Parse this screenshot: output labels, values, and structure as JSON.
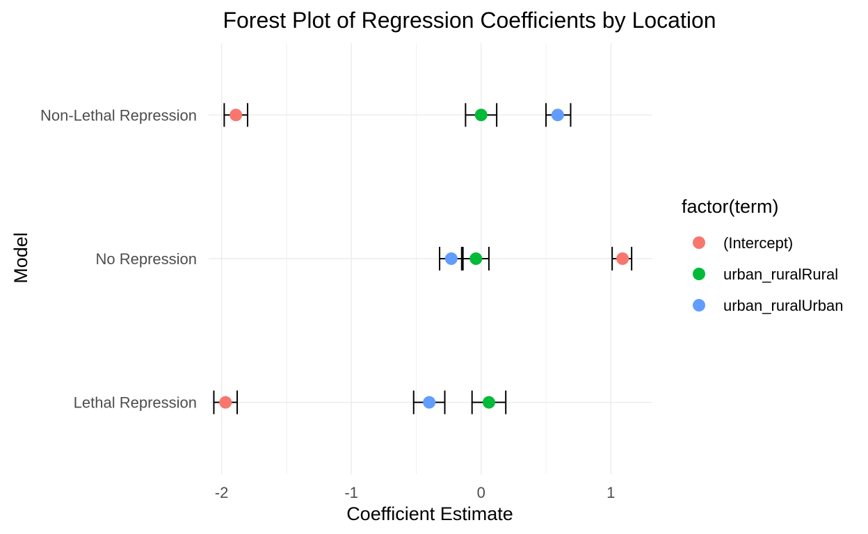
{
  "chart_data": {
    "type": "scatter",
    "title": "Forest Plot of Regression Coefficients by Location",
    "xlabel": "Coefficient Estimate",
    "ylabel": "Model",
    "xlim": [
      -2.1,
      1.32
    ],
    "x_ticks": [
      -2,
      -1,
      0,
      1
    ],
    "x_tick_labels": [
      "-2",
      "-1",
      "0",
      "1"
    ],
    "x_minor_ticks": [
      -1.5,
      -0.5,
      0.5
    ],
    "categories": [
      "Lethal Repression",
      "No Repression",
      "Non-Lethal Repression"
    ],
    "grid": true,
    "legend": {
      "title": "factor(term)",
      "position": "right"
    },
    "series": [
      {
        "name": "(Intercept)",
        "color": "#F8766D",
        "points": [
          {
            "category": "Lethal Repression",
            "estimate": -1.97,
            "lower": -2.06,
            "upper": -1.88
          },
          {
            "category": "No Repression",
            "estimate": 1.09,
            "lower": 1.01,
            "upper": 1.16
          },
          {
            "category": "Non-Lethal Repression",
            "estimate": -1.89,
            "lower": -1.98,
            "upper": -1.8
          }
        ]
      },
      {
        "name": "urban_ruralRural",
        "color": "#00BA38",
        "points": [
          {
            "category": "Lethal Repression",
            "estimate": 0.06,
            "lower": -0.07,
            "upper": 0.19
          },
          {
            "category": "No Repression",
            "estimate": -0.04,
            "lower": -0.14,
            "upper": 0.06
          },
          {
            "category": "Non-Lethal Repression",
            "estimate": 0.0,
            "lower": -0.12,
            "upper": 0.12
          }
        ]
      },
      {
        "name": "urban_ruralUrban",
        "color": "#619CFF",
        "points": [
          {
            "category": "Lethal Repression",
            "estimate": -0.4,
            "lower": -0.52,
            "upper": -0.28
          },
          {
            "category": "No Repression",
            "estimate": -0.23,
            "lower": -0.32,
            "upper": -0.15
          },
          {
            "category": "Non-Lethal Repression",
            "estimate": 0.59,
            "lower": 0.5,
            "upper": 0.69
          }
        ]
      }
    ]
  }
}
